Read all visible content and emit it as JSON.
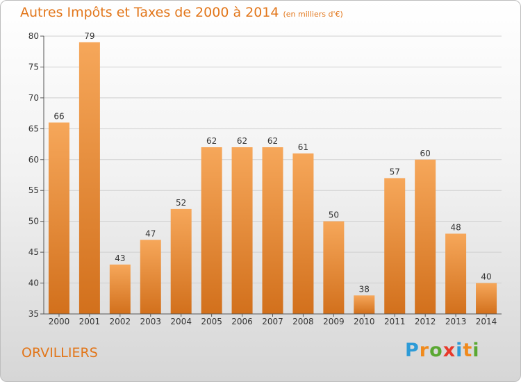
{
  "chart_data": {
    "type": "bar",
    "title": "Autres Impôts et Taxes de 2000 à 2014",
    "subtitle": "(en milliers d'€)",
    "categories": [
      "2000",
      "2001",
      "2002",
      "2003",
      "2004",
      "2005",
      "2006",
      "2007",
      "2008",
      "2009",
      "2010",
      "2011",
      "2012",
      "2013",
      "2014"
    ],
    "values": [
      66,
      79,
      43,
      47,
      52,
      62,
      62,
      62,
      61,
      50,
      38,
      57,
      60,
      48,
      40
    ],
    "ylim": [
      35,
      80
    ],
    "yticks": [
      35,
      40,
      45,
      50,
      55,
      60,
      65,
      70,
      75,
      80
    ],
    "grid": true,
    "bar_color_light": "#f6a75a",
    "bar_color_dark": "#d2701c"
  },
  "commune": "ORVILLIERS",
  "logo": {
    "letters": [
      "P",
      "r",
      "o",
      "x",
      "i",
      "t",
      "i"
    ],
    "colors": [
      "#2d9bd7",
      "#f08a1c",
      "#5aa832",
      "#e8392a",
      "#2d9bd7",
      "#f08a1c",
      "#5aa832"
    ]
  },
  "colors": {
    "title": "#e2761a",
    "grid": "#cfcfcf"
  }
}
